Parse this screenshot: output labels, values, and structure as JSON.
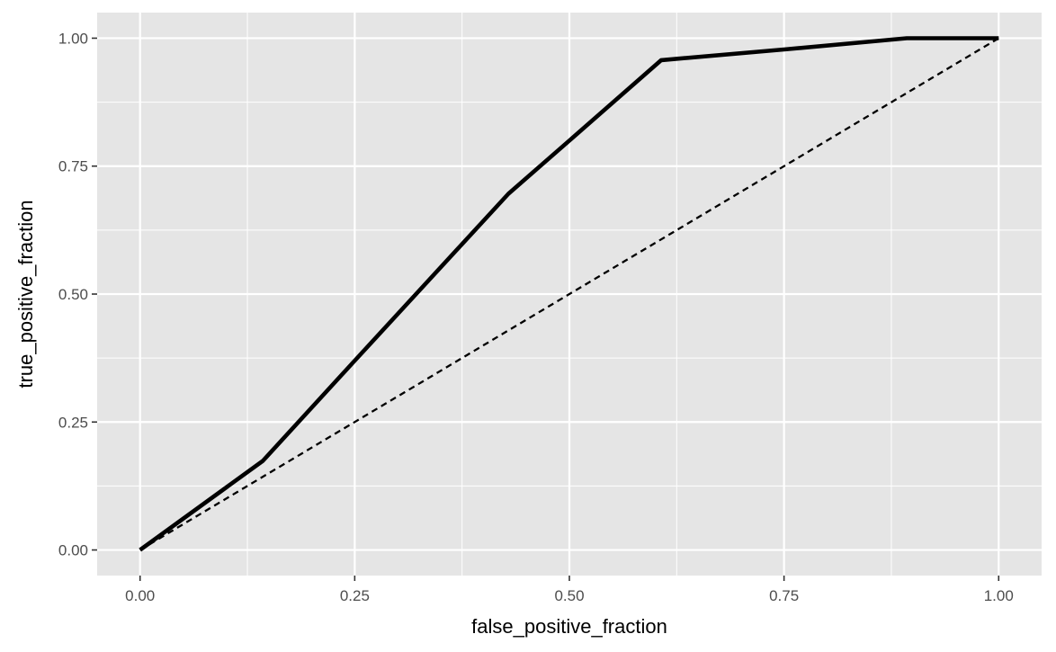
{
  "chart_data": {
    "type": "line",
    "title": "",
    "xlabel": "false_positive_fraction",
    "ylabel": "true_positive_fraction",
    "xlim": [
      -0.05,
      1.05
    ],
    "ylim": [
      -0.05,
      1.05
    ],
    "x_ticks": [
      0.0,
      0.25,
      0.5,
      0.75,
      1.0
    ],
    "x_tick_labels": [
      "0.00",
      "0.25",
      "0.50",
      "0.75",
      "1.00"
    ],
    "y_ticks": [
      0.0,
      0.25,
      0.5,
      0.75,
      1.0
    ],
    "y_tick_labels": [
      "0.00",
      "0.25",
      "0.50",
      "0.75",
      "1.00"
    ],
    "grid": true,
    "legend": "none",
    "background_color": "#e5e5e5",
    "grid_color": "#ffffff",
    "series": [
      {
        "style": "solid",
        "color": "#000000",
        "x": [
          0.0,
          0.143,
          0.25,
          0.429,
          0.5,
          0.607,
          0.75,
          0.893,
          1.0
        ],
        "y": [
          0.0,
          0.174,
          0.37,
          0.696,
          0.8,
          0.957,
          0.978,
          1.0,
          1.0
        ]
      },
      {
        "style": "dashed",
        "color": "#000000",
        "x": [
          0.0,
          1.0
        ],
        "y": [
          0.0,
          1.0
        ]
      }
    ]
  }
}
